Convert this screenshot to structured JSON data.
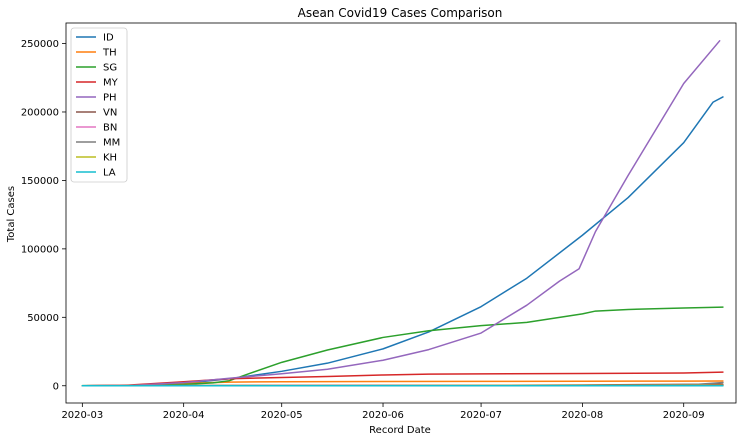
{
  "chart_data": {
    "type": "line",
    "title": "Asean Covid19 Cases Comparison",
    "xlabel": "Record Date",
    "ylabel": "Total Cases",
    "x_ticks": [
      "2020-03",
      "2020-04",
      "2020-05",
      "2020-06",
      "2020-07",
      "2020-08",
      "2020-09"
    ],
    "y_ticks": [
      0,
      50000,
      100000,
      150000,
      200000,
      250000
    ],
    "xlim": [
      "2020-02-25",
      "2020-09-17"
    ],
    "ylim": [
      -12600,
      265000
    ],
    "grid": false,
    "legend_position": "top-left",
    "series": [
      {
        "name": "ID",
        "color": "#1f77b4",
        "points": [
          [
            "2020-03-02",
            2
          ],
          [
            "2020-03-15",
            117
          ],
          [
            "2020-04-01",
            1677
          ],
          [
            "2020-04-15",
            5136
          ],
          [
            "2020-05-01",
            10551
          ],
          [
            "2020-05-15",
            16496
          ],
          [
            "2020-06-01",
            26940
          ],
          [
            "2020-06-15",
            39294
          ],
          [
            "2020-07-01",
            57770
          ],
          [
            "2020-07-15",
            78572
          ],
          [
            "2020-08-01",
            109936
          ],
          [
            "2020-08-15",
            137468
          ],
          [
            "2020-09-01",
            177571
          ],
          [
            "2020-09-10",
            207203
          ],
          [
            "2020-09-13",
            211000
          ]
        ]
      },
      {
        "name": "TH",
        "color": "#ff7f0e",
        "points": [
          [
            "2020-03-01",
            42
          ],
          [
            "2020-03-15",
            114
          ],
          [
            "2020-04-01",
            1771
          ],
          [
            "2020-04-15",
            2643
          ],
          [
            "2020-05-01",
            2960
          ],
          [
            "2020-06-01",
            3082
          ],
          [
            "2020-07-01",
            3173
          ],
          [
            "2020-08-01",
            3310
          ],
          [
            "2020-09-01",
            3411
          ],
          [
            "2020-09-13",
            3480
          ]
        ]
      },
      {
        "name": "SG",
        "color": "#2ca02c",
        "points": [
          [
            "2020-03-01",
            106
          ],
          [
            "2020-03-15",
            226
          ],
          [
            "2020-04-01",
            1000
          ],
          [
            "2020-04-10",
            2108
          ],
          [
            "2020-04-15",
            3699
          ],
          [
            "2020-04-20",
            8014
          ],
          [
            "2020-05-01",
            17101
          ],
          [
            "2020-05-15",
            26098
          ],
          [
            "2020-06-01",
            35292
          ],
          [
            "2020-06-15",
            40197
          ],
          [
            "2020-07-01",
            43907
          ],
          [
            "2020-07-15",
            46283
          ],
          [
            "2020-08-01",
            52512
          ],
          [
            "2020-08-05",
            54555
          ],
          [
            "2020-08-15",
            55747
          ],
          [
            "2020-09-01",
            56812
          ],
          [
            "2020-09-13",
            57406
          ]
        ]
      },
      {
        "name": "MY",
        "color": "#d62728",
        "points": [
          [
            "2020-03-01",
            29
          ],
          [
            "2020-03-15",
            428
          ],
          [
            "2020-04-01",
            2908
          ],
          [
            "2020-04-15",
            5072
          ],
          [
            "2020-05-01",
            6071
          ],
          [
            "2020-05-15",
            6779
          ],
          [
            "2020-06-01",
            7857
          ],
          [
            "2020-06-15",
            8494
          ],
          [
            "2020-07-01",
            8640
          ],
          [
            "2020-08-01",
            8976
          ],
          [
            "2020-09-01",
            9340
          ],
          [
            "2020-09-13",
            9946
          ]
        ]
      },
      {
        "name": "PH",
        "color": "#9467bd",
        "points": [
          [
            "2020-03-01",
            3
          ],
          [
            "2020-03-15",
            140
          ],
          [
            "2020-04-01",
            2311
          ],
          [
            "2020-04-15",
            5453
          ],
          [
            "2020-05-01",
            8772
          ],
          [
            "2020-05-15",
            12091
          ],
          [
            "2020-06-01",
            18638
          ],
          [
            "2020-06-15",
            26420
          ],
          [
            "2020-07-01",
            38511
          ],
          [
            "2020-07-15",
            58850
          ],
          [
            "2020-07-25",
            76444
          ],
          [
            "2020-07-31",
            85486
          ],
          [
            "2020-08-05",
            112593
          ],
          [
            "2020-08-15",
            153660
          ],
          [
            "2020-09-01",
            220819
          ],
          [
            "2020-09-12",
            252000
          ]
        ]
      },
      {
        "name": "VN",
        "color": "#8c564b",
        "points": [
          [
            "2020-03-01",
            16
          ],
          [
            "2020-04-01",
            218
          ],
          [
            "2020-05-01",
            270
          ],
          [
            "2020-06-01",
            328
          ],
          [
            "2020-07-01",
            355
          ],
          [
            "2020-08-01",
            558
          ],
          [
            "2020-09-01",
            1046
          ],
          [
            "2020-09-13",
            1060
          ]
        ]
      },
      {
        "name": "BN",
        "color": "#e377c2",
        "points": [
          [
            "2020-03-01",
            0
          ],
          [
            "2020-04-01",
            131
          ],
          [
            "2020-05-01",
            138
          ],
          [
            "2020-09-13",
            145
          ]
        ]
      },
      {
        "name": "MM",
        "color": "#7f7f7f",
        "points": [
          [
            "2020-03-01",
            0
          ],
          [
            "2020-04-01",
            15
          ],
          [
            "2020-06-01",
            224
          ],
          [
            "2020-08-01",
            353
          ],
          [
            "2020-08-25",
            600
          ],
          [
            "2020-09-05",
            1000
          ],
          [
            "2020-09-13",
            2400
          ]
        ]
      },
      {
        "name": "KH",
        "color": "#bcbd22",
        "points": [
          [
            "2020-03-01",
            1
          ],
          [
            "2020-04-01",
            109
          ],
          [
            "2020-05-01",
            122
          ],
          [
            "2020-07-01",
            141
          ],
          [
            "2020-09-13",
            275
          ]
        ]
      },
      {
        "name": "LA",
        "color": "#17becf",
        "points": [
          [
            "2020-03-01",
            0
          ],
          [
            "2020-04-01",
            9
          ],
          [
            "2020-05-01",
            19
          ],
          [
            "2020-09-13",
            23
          ]
        ]
      }
    ]
  }
}
